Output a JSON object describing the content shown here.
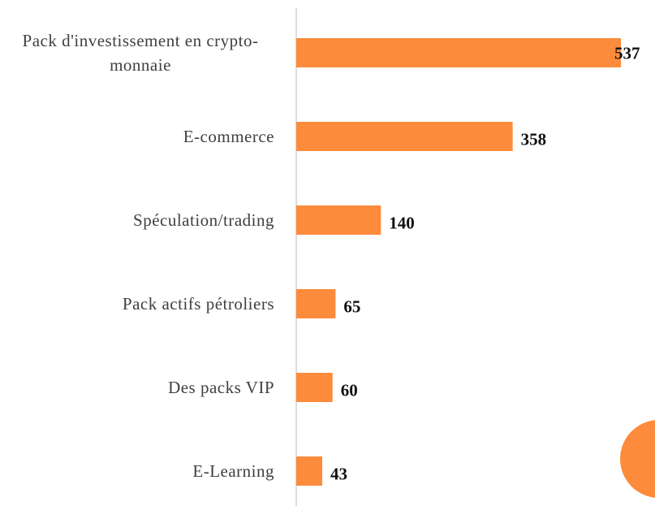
{
  "chart_data": {
    "type": "bar",
    "orientation": "horizontal",
    "categories": [
      "Pack d'investissement en crypto-monnaie",
      "E-commerce",
      "Spéculation/trading",
      "Pack actifs pétroliers",
      "Des packs VIP",
      "E-Learning"
    ],
    "values": [
      537,
      358,
      140,
      65,
      60,
      43
    ],
    "color": "#fd8b3c"
  }
}
